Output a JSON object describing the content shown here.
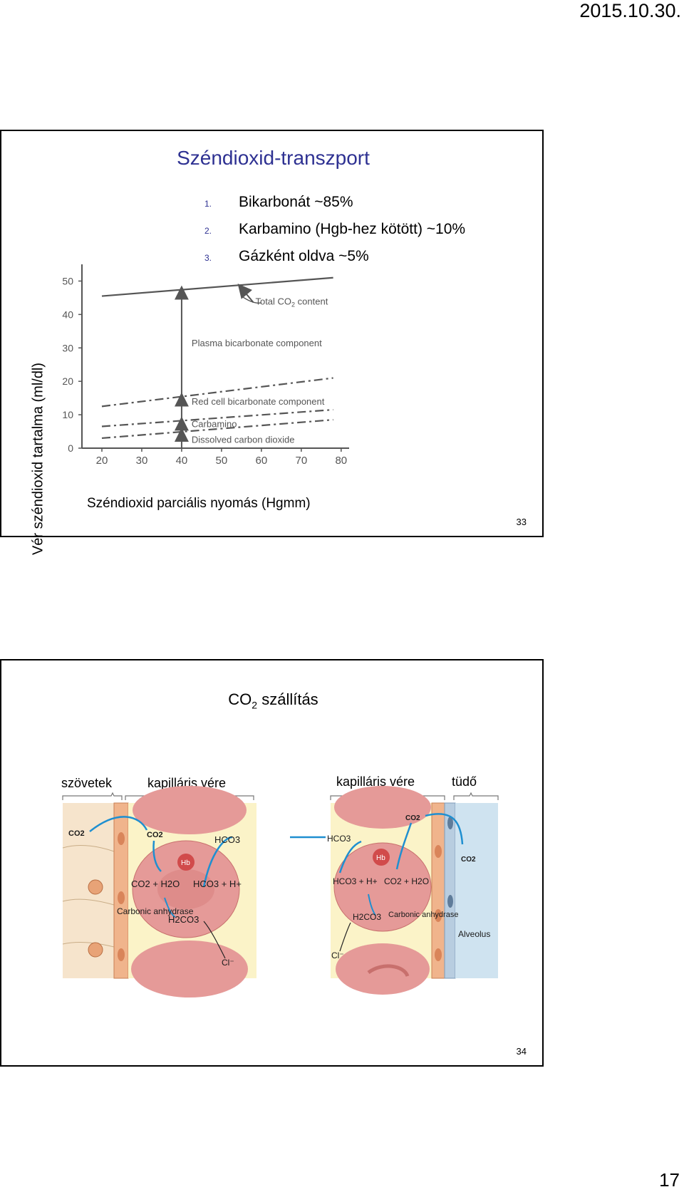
{
  "header": {
    "date": "2015.10.30."
  },
  "footer": {
    "page_number": "17"
  },
  "slide1": {
    "title": "Széndioxid-transzport",
    "list": [
      {
        "num": "1.",
        "text": "Bikarbonát ~85%"
      },
      {
        "num": "2.",
        "text": "Karbamino  (Hgb-hez kötött) ~10%"
      },
      {
        "num": "3.",
        "text": "Gázként oldva ~5%"
      }
    ],
    "y_axis_label": "Vér széndioxid tartalma (ml/dl)",
    "x_axis_label": "Széndioxid parciális nyomás (Hgmm)",
    "slide_number": "33"
  },
  "chart_data": {
    "type": "line",
    "x_ticks": [
      "20",
      "30",
      "40",
      "50",
      "60",
      "70",
      "80"
    ],
    "y_ticks": [
      "0",
      "10",
      "20",
      "30",
      "40",
      "50"
    ],
    "xlim": [
      15,
      82
    ],
    "ylim": [
      0,
      55
    ],
    "series": [
      {
        "name": "Total CO2 content",
        "style": "solid",
        "points": [
          [
            20,
            45.5
          ],
          [
            78,
            51
          ]
        ]
      },
      {
        "name": "Red cell bicarbonate component",
        "style": "dashdot",
        "points": [
          [
            20,
            12.5
          ],
          [
            78,
            21
          ]
        ]
      },
      {
        "name": "Carbamino",
        "style": "dashdot",
        "points": [
          [
            20,
            6.5
          ],
          [
            78,
            11.5
          ]
        ]
      },
      {
        "name": "Dissolved carbon dioxide",
        "style": "dashdot",
        "points": [
          [
            20,
            3
          ],
          [
            78,
            8.5
          ]
        ]
      }
    ],
    "annotations": {
      "total": "Total CO",
      "total_sub": "2",
      "total_tail": " content",
      "plasma": "Plasma bicarbonate component",
      "red_cell": "Red cell bicarbonate component",
      "carbamino": "Carbamino",
      "dissolved": "Dissolved carbon dioxide"
    },
    "arrow_x": 40
  },
  "slide2": {
    "title_main": "CO",
    "title_sub": "2",
    "title_tail": " szállítás",
    "left_tissue_label": "szövetek",
    "left_capillary_label": "kapilláris vére",
    "right_capillary_label": "kapilláris vére",
    "right_lung_label": "tüdő",
    "slide_number": "34",
    "left_diagram": {
      "co2_tissue": "CO2",
      "co2_cell": "CO2",
      "hco3_out": "HCO3",
      "hb": "Hb",
      "reaction_left": "CO2 + H2O",
      "reaction_right": "HCO3 + H+",
      "enzyme": "Carbonic anhydrase",
      "h2co3": "H2CO3",
      "cl": "Cl⁻"
    },
    "right_diagram": {
      "hco3_in": "HCO3",
      "hb": "Hb",
      "co2_top": "CO2",
      "co2_alv": "CO2",
      "reaction_left": "HCO3 + H+",
      "reaction_right": "CO2 + H2O",
      "enzyme": "Carbonic anhydrase",
      "h2co3": "H2CO3",
      "cl": "Cl⁻",
      "alveolus": "Alveolus"
    }
  },
  "colors": {
    "title_blue": "#2e3192",
    "arrow_blue": "#1f8fd0",
    "plasma_yellow": "#fbf3c8",
    "rbc_red": "#e59a98",
    "endothelium_orange": "#f0b48c",
    "alveolus_blue": "#cfe3f0",
    "tissue_cream": "#f6e4cc"
  }
}
